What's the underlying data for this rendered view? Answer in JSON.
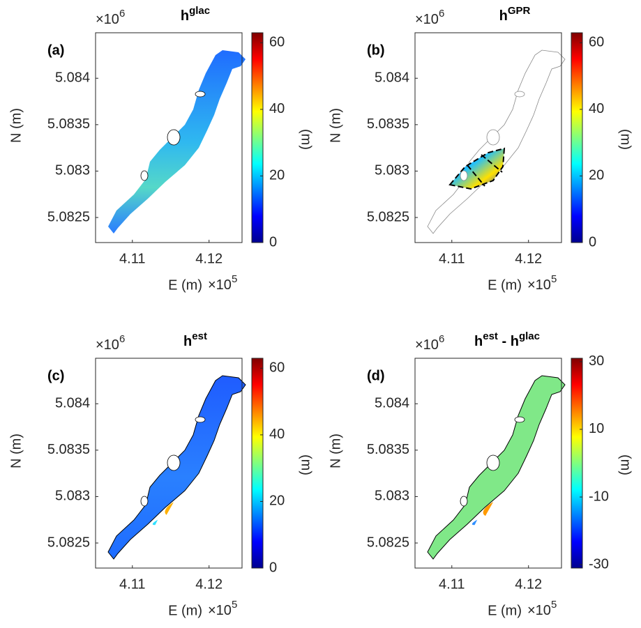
{
  "chart_data": [
    {
      "type": "map",
      "panel_label": "(a)",
      "title_parts": [
        {
          "text": "h",
          "sup": "glac"
        }
      ],
      "xlabel": "E (m)",
      "ylabel": "N (m)",
      "x_multiplier": {
        "base": "×10",
        "exponent": "5"
      },
      "y_multiplier": {
        "base": "×10",
        "exponent": "6"
      },
      "xlim": [
        4.1052,
        4.1243
      ],
      "xticks": [
        4.11,
        4.12
      ],
      "ylim": [
        5.08223,
        5.08449
      ],
      "yticks": [
        5.0825,
        5.083,
        5.0835,
        5.084
      ],
      "colormap": "jet",
      "clim": [
        0,
        63
      ],
      "cticks": [
        0,
        20,
        40,
        60
      ],
      "clabel": "(m)"
    },
    {
      "type": "map",
      "panel_label": "(b)",
      "title_parts": [
        {
          "text": "h",
          "sup": "GPR"
        }
      ],
      "xlabel": "E (m)",
      "ylabel": "N (m)",
      "x_multiplier": {
        "base": "×10",
        "exponent": "5"
      },
      "y_multiplier": {
        "base": "×10",
        "exponent": "6"
      },
      "xlim": [
        4.1052,
        4.1243
      ],
      "xticks": [
        4.11,
        4.12
      ],
      "ylim": [
        5.08223,
        5.08449
      ],
      "yticks": [
        5.0825,
        5.083,
        5.0835,
        5.084
      ],
      "colormap": "jet",
      "clim": [
        0,
        63
      ],
      "cticks": [
        0,
        20,
        40,
        60
      ],
      "clabel": "(m)"
    },
    {
      "type": "map",
      "panel_label": "(c)",
      "title_parts": [
        {
          "text": "h",
          "sup": "est"
        }
      ],
      "xlabel": "E (m)",
      "ylabel": "N (m)",
      "x_multiplier": {
        "base": "×10",
        "exponent": "5"
      },
      "y_multiplier": {
        "base": "×10",
        "exponent": "6"
      },
      "xlim": [
        4.1052,
        4.1243
      ],
      "xticks": [
        4.11,
        4.12
      ],
      "ylim": [
        5.08223,
        5.08449
      ],
      "yticks": [
        5.0825,
        5.083,
        5.0835,
        5.084
      ],
      "colormap": "jet",
      "clim": [
        0,
        63
      ],
      "cticks": [
        0,
        20,
        40,
        60
      ],
      "clabel": "(m)"
    },
    {
      "type": "map",
      "panel_label": "(d)",
      "title_parts": [
        {
          "text": "h",
          "sup": "est"
        },
        {
          "text": " - h",
          "sup": "glac"
        }
      ],
      "xlabel": "E (m)",
      "ylabel": "N (m)",
      "x_multiplier": {
        "base": "×10",
        "exponent": "5"
      },
      "y_multiplier": {
        "base": "×10",
        "exponent": "6"
      },
      "xlim": [
        4.1052,
        4.1243
      ],
      "xticks": [
        4.11,
        4.12
      ],
      "ylim": [
        5.08223,
        5.08449
      ],
      "yticks": [
        5.0825,
        5.083,
        5.0835,
        5.084
      ],
      "colormap": "jet",
      "clim": [
        -31,
        31
      ],
      "cticks": [
        -30,
        -10,
        10,
        30
      ],
      "clabel": "(m)"
    }
  ]
}
